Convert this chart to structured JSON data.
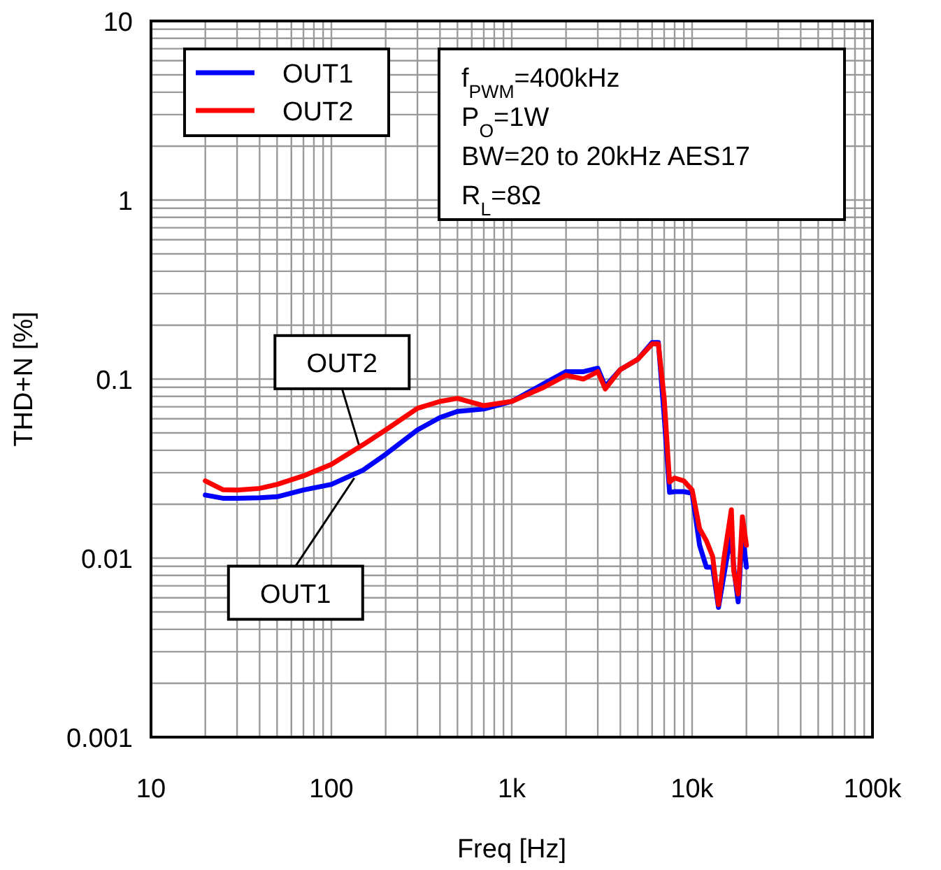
{
  "chart_data": {
    "type": "line",
    "xlabel": "Freq [Hz]",
    "ylabel": "THD+N [%]",
    "log": "xy",
    "grid": true,
    "legend": "top left",
    "line_style": "solid",
    "marker": "none",
    "xlim": [
      10,
      100000
    ],
    "ylim": [
      0.001,
      10
    ],
    "xticks": [
      10,
      100,
      {
        "value": 1000,
        "label": "1k"
      },
      {
        "value": 10000,
        "label": "10k"
      },
      {
        "value": 100000,
        "label": "100k"
      }
    ],
    "yticks": [
      0.001,
      0.01,
      0.1,
      1,
      10
    ],
    "series": [
      {
        "name": "OUT1",
        "color": "#0000ff",
        "x": [
          20,
          25,
          30,
          40,
          50,
          70,
          100,
          150,
          200,
          300,
          400,
          500,
          700,
          1000,
          1500,
          2000,
          2500,
          3000,
          3300,
          4000,
          5000,
          6000,
          6500,
          7000,
          7500,
          8000,
          9000,
          10000,
          11000,
          12000,
          13000,
          14000,
          15000,
          16500,
          17000,
          18000,
          19000,
          20000
        ],
        "values": [
          0.0225,
          0.0216,
          0.0216,
          0.0217,
          0.022,
          0.024,
          0.0258,
          0.031,
          0.038,
          0.052,
          0.061,
          0.066,
          0.068,
          0.075,
          0.094,
          0.11,
          0.11,
          0.115,
          0.091,
          0.113,
          0.129,
          0.16,
          0.16,
          0.062,
          0.0233,
          0.0235,
          0.0235,
          0.023,
          0.0118,
          0.0089,
          0.0089,
          0.0053,
          0.008,
          0.014,
          0.0089,
          0.0057,
          0.014,
          0.0089
        ]
      },
      {
        "name": "OUT2",
        "color": "#ff0000",
        "x": [
          20,
          25,
          30,
          40,
          50,
          70,
          100,
          150,
          200,
          300,
          400,
          500,
          700,
          1000,
          1500,
          2000,
          2500,
          3000,
          3300,
          4000,
          5000,
          6000,
          6500,
          7000,
          7500,
          8000,
          9000,
          10000,
          11000,
          12000,
          13000,
          14000,
          15000,
          16500,
          17000,
          18000,
          19000,
          20000
        ],
        "values": [
          0.027,
          0.0241,
          0.024,
          0.0245,
          0.0258,
          0.0288,
          0.0334,
          0.043,
          0.052,
          0.0686,
          0.075,
          0.078,
          0.071,
          0.075,
          0.0898,
          0.105,
          0.1,
          0.11,
          0.088,
          0.113,
          0.129,
          0.157,
          0.157,
          0.078,
          0.0266,
          0.028,
          0.027,
          0.024,
          0.0146,
          0.0125,
          0.0102,
          0.0055,
          0.0099,
          0.0186,
          0.0085,
          0.0063,
          0.017,
          0.0118
        ]
      }
    ],
    "annotations": [
      {
        "text": "OUT2",
        "x": 142,
        "y": 0.043
      },
      {
        "text": "OUT1",
        "x": 134,
        "y": 0.028
      },
      "f$_{PWM}$=400kHz",
      "P$_{O}$=1W",
      "BW=20 to 20kHz AES17",
      "R$_{L}$=8Ω"
    ]
  }
}
